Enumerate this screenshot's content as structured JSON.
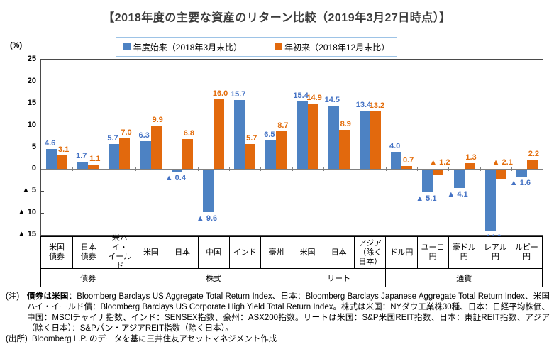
{
  "chart_data": {
    "type": "bar",
    "title": "【2018年度の主要な資産のリターン比較（2019年3月27日時点）】",
    "unit_label": "(%)",
    "ylim": [
      -15,
      25
    ],
    "ytick_step": 5,
    "ytick_labels": [
      "25",
      "20",
      "15",
      "10",
      "5",
      "0",
      "▲ 5",
      "▲ 10",
      "▲ 15"
    ],
    "negative_prefix": "▲ ",
    "grid": false,
    "legend_position": "top",
    "categories": [
      {
        "lines": [
          "米国",
          "債券"
        ]
      },
      {
        "lines": [
          "日本",
          "債券"
        ]
      },
      {
        "lines": [
          "米ハイ・",
          "イールド"
        ]
      },
      {
        "lines": [
          "米国"
        ]
      },
      {
        "lines": [
          "日本"
        ]
      },
      {
        "lines": [
          "中国"
        ]
      },
      {
        "lines": [
          "インド"
        ]
      },
      {
        "lines": [
          "豪州"
        ]
      },
      {
        "lines": [
          "米国"
        ]
      },
      {
        "lines": [
          "日本"
        ]
      },
      {
        "lines": [
          "アジア",
          "（除く",
          "日本）"
        ]
      },
      {
        "lines": [
          "ドル円"
        ]
      },
      {
        "lines": [
          "ユーロ",
          "円"
        ]
      },
      {
        "lines": [
          "豪ドル",
          "円"
        ]
      },
      {
        "lines": [
          "レアル",
          "円"
        ]
      },
      {
        "lines": [
          "ルピー",
          "円"
        ]
      }
    ],
    "groups": [
      {
        "label": "債券",
        "span": 3
      },
      {
        "label": "株式",
        "span": 5
      },
      {
        "label": "リート",
        "span": 3
      },
      {
        "label": "通貨",
        "span": 5
      }
    ],
    "series": [
      {
        "name": "年度始来（2018年3月末比）",
        "color": "#4D82C3",
        "label_color": "#4472C4",
        "values": [
          4.6,
          1.7,
          5.7,
          6.3,
          -0.4,
          -9.6,
          15.7,
          6.5,
          15.4,
          14.5,
          13.4,
          4.0,
          -5.1,
          -4.1,
          -14.0,
          -1.6
        ]
      },
      {
        "name": "年初来（2018年12月末比）",
        "color": "#E2690D",
        "label_color": "#E36C0A",
        "values": [
          3.1,
          1.1,
          7.0,
          9.9,
          6.8,
          16.0,
          5.7,
          8.7,
          14.9,
          8.9,
          13.2,
          0.7,
          -1.2,
          1.3,
          -2.1,
          2.2
        ]
      }
    ]
  },
  "notes": {
    "note_label": "(注)",
    "note_bold": "債券は米国",
    "note_text": "：Bloomberg Barclays US Aggregate Total Return Index、日本：Bloomberg Barclays Japanese Aggregate Total Return Index、米国ハイ・イールド債：Bloomberg Barclays US Corporate High Yield Total Return Index。株式は米国：NYダウ工業株30種、日本：日経平均株価、中国：MSCIチャイナ指数、インド：SENSEX指数、豪州：ASX200指数。リートは米国：S&P米国REIT指数、日本：東証REIT指数、アジア（除く日本）：S&Pパン・アジアREIT指数（除く日本）。",
    "source_label": "(出所)",
    "source_text": "Bloomberg L.P. のデータを基に三井住友アセットマネジメント作成"
  },
  "colors": {
    "legend_border": "#9DC3E6",
    "axis_frame": "#4a4a4a",
    "zero_line": "#808080",
    "table_border": "#000000"
  }
}
